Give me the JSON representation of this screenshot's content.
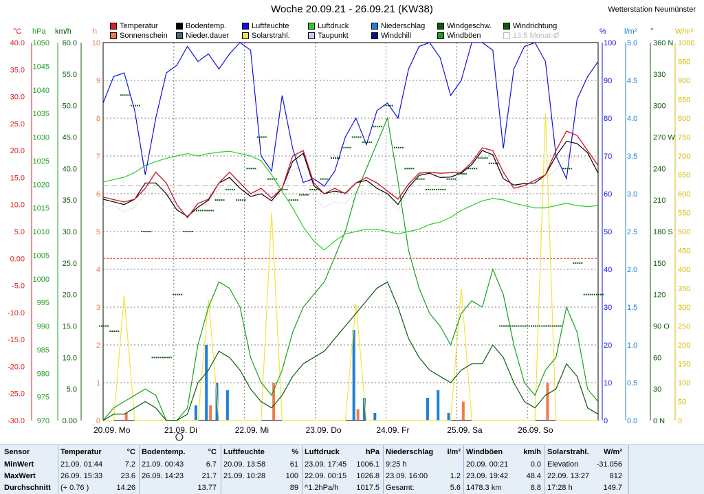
{
  "title": "Woche 20.09.21 - 26.09.21 (KW38)",
  "station": "Wetterstation Neumünster",
  "legend": [
    {
      "label": "Temperatur",
      "color": "#e41a1c"
    },
    {
      "label": "Bodentemp.",
      "color": "#000000"
    },
    {
      "label": "Luftfeuchte",
      "color": "#1010e0"
    },
    {
      "label": "Luftdruck",
      "color": "#22d122"
    },
    {
      "label": "Niederschlag",
      "color": "#1f7fd8"
    },
    {
      "label": "Windgeschw.",
      "color": "#0a5a0a"
    },
    {
      "label": "Windrichtung",
      "color": "#0a5a0a"
    },
    {
      "label": "Sonnenschein",
      "color": "#f07a50"
    },
    {
      "label": "Nieder.dauer",
      "color": "#407070"
    },
    {
      "label": "Solarstrahl.",
      "color": "#f5e33a"
    },
    {
      "label": "Taupunkt",
      "color": "#c8c8f0"
    },
    {
      "label": "Windchill",
      "color": "#10108a"
    },
    {
      "label": "Windböen",
      "color": "#18a018"
    },
    {
      "label": "13.5 Monat-Ø",
      "color": "#ffffff"
    }
  ],
  "axis_titles": {
    "temp": "°C",
    "hpa": "hPa",
    "kmh": "km/h",
    "h": "h",
    "pct": "%",
    "lm2": "l/m²",
    "deg": "°",
    "wm2": "W/m²"
  },
  "chart_data": {
    "type": "line",
    "title": "Woche 20.09.21 - 26.09.21 (KW38)",
    "x_labels": [
      "20.09. Mo",
      "21.09. Di",
      "22.09. Mi",
      "23.09. Do",
      "24.09. Fr",
      "25.09. Sa",
      "26.09. So"
    ],
    "axes": {
      "temp_c": {
        "min": -30,
        "max": 40,
        "ticks": [
          "-30.0",
          "-25.0",
          "-20.0",
          "-15.0",
          "-10.0",
          "-5.0",
          "0.00",
          "5.0",
          "10.0",
          "15.0",
          "20.0",
          "25.0",
          "30.0",
          "35.0",
          "40.0"
        ]
      },
      "pressure_hpa": {
        "min": 970,
        "max": 1050,
        "ticks": [
          "970",
          "975",
          "980",
          "985",
          "990",
          "995",
          "1000",
          "1005",
          "1010",
          "1015",
          "1020",
          "1025",
          "1030",
          "1035",
          "1040",
          "1045",
          "1050"
        ]
      },
      "wind_kmh": {
        "min": 0,
        "max": 60,
        "ticks": [
          "0.00",
          "5.0",
          "10.0",
          "15.0",
          "20.0",
          "25.0",
          "30.0",
          "35.0",
          "40.0",
          "45.0",
          "50.0",
          "55.0",
          "60.0"
        ]
      },
      "hours_h": {
        "min": 0,
        "max": 10,
        "ticks": [
          "0",
          "1",
          "2",
          "3",
          "4",
          "5",
          "6",
          "7",
          "8",
          "9",
          "10"
        ]
      },
      "humidity_pct": {
        "min": 0,
        "max": 100,
        "ticks": [
          "0",
          "10",
          "20",
          "30",
          "40",
          "50",
          "60",
          "70",
          "80",
          "90",
          "100"
        ]
      },
      "rain_lm2": {
        "min": 0,
        "max": 5,
        "ticks": [
          "0.0",
          "0.5",
          "1.0",
          "1.5",
          "2.0",
          "2.5",
          "3.0",
          "3.5",
          "4.0",
          "4.5",
          "5.0"
        ]
      },
      "wind_dir_deg": {
        "min": 0,
        "max": 360,
        "ticks": [
          "0 N",
          "30",
          "60",
          "90 O",
          "120",
          "150",
          "180 S",
          "210",
          "240",
          "270 W",
          "300",
          "330",
          "360 N"
        ]
      },
      "solar_wm2": {
        "min": 0,
        "max": 1000,
        "ticks": [
          "0",
          "50",
          "100",
          "150",
          "200",
          "250",
          "300",
          "350",
          "400",
          "450",
          "500",
          "550",
          "600",
          "650",
          "700",
          "750",
          "800",
          "850",
          "900",
          "950",
          "1000"
        ]
      }
    },
    "series": [
      {
        "name": "Temperatur",
        "color": "#e41a1c",
        "axis": "temp_c",
        "values": [
          11.4,
          10.9,
          10.5,
          11,
          13,
          16,
          14,
          10,
          7.6,
          10.2,
          11,
          14,
          16,
          14,
          12,
          13,
          11.2,
          13,
          19,
          20,
          14,
          12,
          13,
          12,
          14,
          15,
          14,
          12.5,
          11,
          13.8,
          15.8,
          16,
          15.8,
          15.9,
          16,
          17.8,
          20.5,
          20,
          16,
          13,
          13.5,
          14.5,
          15.5,
          20,
          23.6,
          22.8,
          20,
          17.2
        ]
      },
      {
        "name": "Bodentemp.",
        "color": "#000000",
        "axis": "temp_c",
        "values": [
          11,
          10.5,
          10,
          11,
          14,
          14,
          12,
          9,
          7.8,
          9.5,
          10.8,
          14,
          15,
          13,
          11.5,
          12,
          10.7,
          13,
          18,
          19.5,
          13.5,
          12,
          12.5,
          12.1,
          14,
          14.5,
          13,
          12,
          10,
          13.2,
          15.4,
          15.8,
          15,
          15.1,
          15.8,
          17.4,
          20,
          19.2,
          14.8,
          13.6,
          13.9,
          14,
          15.5,
          19,
          21.7,
          21.3,
          19.6,
          15.8
        ]
      },
      {
        "name": "Luftfeuchte",
        "color": "#1010e0",
        "axis": "humidity_pct",
        "values": [
          84,
          91,
          92,
          82,
          65,
          80,
          92,
          94,
          99,
          95,
          97,
          93,
          97,
          100,
          98,
          70,
          66,
          86,
          72,
          63,
          64,
          62,
          66,
          75,
          80,
          73,
          82,
          84,
          80,
          93,
          99,
          100,
          96,
          86,
          90,
          100,
          100,
          98,
          72,
          93,
          99,
          100,
          95,
          70,
          64,
          85,
          91,
          95
        ]
      },
      {
        "name": "Luftdruck",
        "color": "#22d122",
        "axis": "pressure_hpa",
        "values": [
          1020.5,
          1021,
          1021.5,
          1022.5,
          1024,
          1024.8,
          1025.5,
          1026,
          1026.5,
          1026,
          1026.5,
          1026.8,
          1027,
          1026.5,
          1026,
          1025,
          1022,
          1018.5,
          1015,
          1011,
          1008,
          1006.1,
          1008,
          1009.5,
          1010,
          1010.5,
          1010.5,
          1010,
          1009.5,
          1010,
          1010.5,
          1011.5,
          1012,
          1013,
          1014.5,
          1015.5,
          1016.5,
          1017,
          1016.7,
          1016,
          1015.5,
          1015,
          1015,
          1015.5,
          1016,
          1015.5,
          1015.3,
          1015.5
        ]
      },
      {
        "name": "Windböen",
        "color": "#18a018",
        "axis": "wind_kmh",
        "values": [
          0,
          2,
          3,
          4,
          5,
          4,
          0,
          0,
          2,
          12,
          18,
          22,
          21,
          18,
          10,
          6,
          4,
          8,
          14,
          18,
          20,
          22,
          26,
          30,
          36,
          40,
          44,
          48,
          38,
          27,
          21,
          17,
          15,
          12,
          17,
          19,
          18,
          24,
          20,
          12,
          6,
          4,
          8,
          10,
          18,
          14,
          5,
          3
        ]
      },
      {
        "name": "Windgeschw.",
        "color": "#0a5a0a",
        "axis": "wind_kmh",
        "values": [
          0,
          1,
          1,
          2,
          3,
          2,
          0,
          0,
          1,
          6,
          8,
          11,
          10,
          8,
          5,
          3,
          2,
          4,
          7,
          9,
          10,
          11,
          13,
          15,
          17,
          19,
          21,
          22,
          18,
          13,
          10,
          8,
          7,
          6,
          8,
          9,
          9,
          12,
          10,
          6,
          3,
          2,
          4,
          5,
          9,
          7,
          2,
          1
        ]
      },
      {
        "name": "Solarstrahl.",
        "color": "#f5e33a",
        "axis": "solar_wm2",
        "values": [
          0,
          0,
          330,
          0,
          0,
          0,
          0,
          0,
          0,
          0,
          320,
          0,
          0,
          0,
          0,
          0,
          550,
          0,
          0,
          0,
          0,
          0,
          0,
          0,
          310,
          0,
          0,
          0,
          0,
          0,
          0,
          0,
          0,
          0,
          350,
          0,
          0,
          0,
          0,
          0,
          0,
          0,
          812,
          0,
          0,
          0,
          0,
          0
        ]
      },
      {
        "name": "Taupunkt",
        "color": "#c8c8f0",
        "axis": "temp_c",
        "values": [
          9.5,
          9.8,
          8.7,
          9.5,
          12,
          13.8,
          12.5,
          9.5,
          7.6,
          9.2,
          10.2,
          13,
          15.2,
          13.9,
          11.8,
          12.5,
          10.1,
          12.5,
          16.5,
          17,
          11,
          9.5,
          10.5,
          10.2,
          12.2,
          12.6,
          11.9,
          11.1,
          9,
          12.5,
          15.3,
          16,
          15.6,
          14.2,
          14.8,
          17.5,
          20.3,
          19.6,
          14,
          12.4,
          13.1,
          14.2,
          14.9,
          16.5,
          18.5,
          19,
          18.2,
          16.5
        ]
      },
      {
        "name": "Windchill",
        "color": "#10108a",
        "axis": "temp_c",
        "values": [
          11.4,
          10.9,
          10.5,
          11,
          13,
          16,
          14,
          10,
          7.6,
          10.2,
          11,
          14,
          16,
          14,
          12,
          13,
          11.2,
          13,
          19,
          20,
          14,
          12,
          13,
          12,
          14,
          15,
          14,
          12.5,
          11,
          13.8,
          15.8,
          16,
          15.8,
          15.9,
          16,
          17.8,
          20.5,
          20,
          16,
          13,
          13.5,
          14.5,
          15.5,
          20,
          23.6,
          22.8,
          20,
          17.2
        ]
      }
    ],
    "reference_lines": [
      {
        "name": "0 °C",
        "value": 0,
        "axis": "temp_c",
        "color": "#e41a1c"
      },
      {
        "name": "13.5 Monat-Ø",
        "value": 13.5,
        "axis": "temp_c",
        "color": "#aaaaaa"
      }
    ],
    "bars": {
      "Niederschlag": {
        "color": "#1f7fd8",
        "axis": "rain_lm2",
        "values": [
          0,
          0,
          0,
          0,
          0,
          0,
          0,
          0,
          0,
          0.2,
          1.0,
          0.5,
          0.4,
          0,
          0,
          0,
          0,
          0,
          0,
          0,
          0,
          0,
          0,
          0,
          1.2,
          0.3,
          0.1,
          0,
          0,
          0,
          0,
          0.3,
          0.4,
          0.1,
          0,
          0,
          0,
          0,
          0,
          0,
          0,
          0,
          0,
          0,
          0,
          0,
          0,
          0
        ]
      },
      "Sonnenschein": {
        "color": "#f07a50",
        "axis": "hours_h",
        "values": [
          0,
          0,
          0.2,
          0,
          0,
          0,
          0,
          0,
          0,
          0,
          0.4,
          0,
          0,
          0,
          0,
          0,
          1.0,
          0,
          0,
          0,
          0,
          0,
          0,
          0,
          0.3,
          0,
          0,
          0,
          0,
          0,
          0,
          0,
          0,
          0,
          0.5,
          0,
          0,
          0,
          0,
          0,
          0,
          0,
          1.0,
          0,
          0,
          0,
          0,
          0
        ]
      }
    },
    "wind_direction_deg": [
      90,
      85,
      310,
      300,
      180,
      60,
      60,
      120,
      180,
      200,
      200,
      210,
      220,
      210,
      240,
      270,
      230,
      220,
      210,
      215,
      220,
      230,
      250,
      260,
      270,
      265,
      280,
      300,
      260,
      240,
      230,
      220,
      220,
      230,
      235,
      240,
      250,
      245,
      90,
      90,
      90,
      90,
      90,
      90,
      240,
      150,
      120,
      120
    ],
    "grid": true
  },
  "stats": {
    "row_labels": [
      "Sensor",
      "MinWert",
      "MaxWert",
      "Durchschnitt"
    ],
    "columns": [
      {
        "head": "Temperatur",
        "unit": "°C",
        "min_date": "21.09.  01:44",
        "min_val": "7.2",
        "max_date": "26.09.  15:33",
        "max_val": "23.6",
        "avg_label": "(+ 0.76 )",
        "avg_val": "14.26"
      },
      {
        "head": "Bodentemp.",
        "unit": "°C",
        "min_date": "21.09.  00:43",
        "min_val": "6.7",
        "max_date": "26.09.  14:23",
        "max_val": "21.7",
        "avg_label": "",
        "avg_val": "13.77"
      },
      {
        "head": "Luftfeuchte",
        "unit": "%",
        "min_date": "20.09.  13:58",
        "min_val": "61",
        "max_date": "21.09.  10:28",
        "max_val": "100",
        "avg_label": "",
        "avg_val": "89"
      },
      {
        "head": "Luftdruck",
        "unit": "hPa",
        "min_date": "23.09.  17:45",
        "min_val": "1006.1",
        "max_date": "22.09.  00:15",
        "max_val": "1026.8",
        "avg_label": "^1.2hPa/h",
        "avg_val": "1017.5"
      },
      {
        "head": "Niederschlag",
        "unit": "l/m²",
        "min_date": "9:25 h",
        "min_val": "",
        "max_date": "23.09.  16:00",
        "max_val": "1.2",
        "avg_label": "Gesamt:",
        "avg_val": "5.6"
      },
      {
        "head": "Windböen",
        "unit": "km/h",
        "min_date": "20.09.  00:21",
        "min_val": "0.0",
        "max_date": "23.09.  19:42",
        "max_val": "48.4",
        "avg_label": "1478.3 km",
        "avg_val": "8.8"
      },
      {
        "head": "Solarstrahl.",
        "unit": "W/m²",
        "min_date": "Elevation",
        "min_val": "-31.056",
        "max_date": "22.09.  13:27",
        "max_val": "812",
        "avg_label": "17:28 h",
        "avg_val": "149.7"
      }
    ]
  }
}
